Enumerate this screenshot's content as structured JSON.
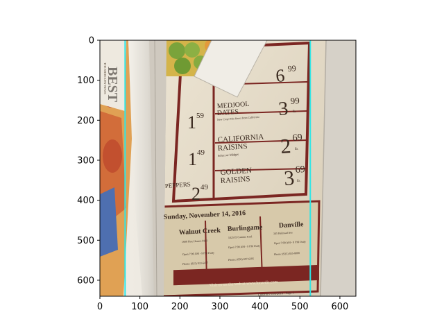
{
  "chart_data": {
    "type": "image",
    "title": "",
    "xlabel": "",
    "ylabel": "",
    "xlim": [
      0,
      640
    ],
    "ylim": [
      640,
      0
    ],
    "x_ticks": [
      0,
      100,
      200,
      300,
      400,
      500,
      600
    ],
    "y_ticks": [
      0,
      100,
      200,
      300,
      400,
      500,
      600
    ],
    "grid": false,
    "legend": "none",
    "series": [
      {
        "x": [
          63,
          63
        ],
        "y": [
          0,
          640
        ],
        "color": "#2ee6e6"
      },
      {
        "x": [
          526,
          526
        ],
        "y": [
          0,
          640
        ],
        "color": "#2ee6e6"
      }
    ],
    "photo": {
      "content": "newspaper grocery advertisement",
      "price_items": [
        {
          "name": [
            "MEDJOOL",
            "DATES"
          ],
          "note": "New Crop! The finest from California",
          "whole": "3",
          "cents": "99",
          "unit": "lb."
        },
        {
          "name": [
            "CALIFORNIA",
            "RAISINS"
          ],
          "note": "Select or Midget",
          "whole": "2",
          "cents": "69",
          "unit": "lb."
        },
        {
          "name": [
            "GOLDEN",
            "RAISINS"
          ],
          "note": "",
          "whole": "3",
          "cents": "69",
          "unit": "lb."
        }
      ],
      "left_prices": [
        {
          "whole": "1",
          "cents": "59"
        },
        {
          "whole": "1",
          "cents": "49"
        },
        {
          "whole": "2",
          "cents": "49"
        }
      ],
      "top_price": {
        "whole": "6",
        "cents": "99"
      },
      "peppers_label": "PEPPERS",
      "date_banner": "Sunday, November 14, 2016",
      "stores": [
        {
          "name": "Walnut Creek",
          "lines": [
            "1600 Pine Homes Mall",
            "Open 7:00 AM - 9 PM Daily",
            "Phone: (925) 933-6477"
          ]
        },
        {
          "name": "Burlingame",
          "lines": [
            "1825 El Camino Real",
            "Open 7:00 AM - 9 PM Daily",
            "Phone: (650) 697-6305"
          ]
        },
        {
          "name": "Danville",
          "lines": [
            "345 Railroad Ave",
            "Open 7:00 AM - 9 PM Daily",
            "Phone: (925) 855-8000"
          ]
        }
      ],
      "footer": "Visit us on the web at www.lunardis.com",
      "footer_small": "Lunardi's 11/8/2016 - Page 1",
      "side_text": "THE MERCURY NEWS",
      "side_big": "BEST"
    }
  }
}
